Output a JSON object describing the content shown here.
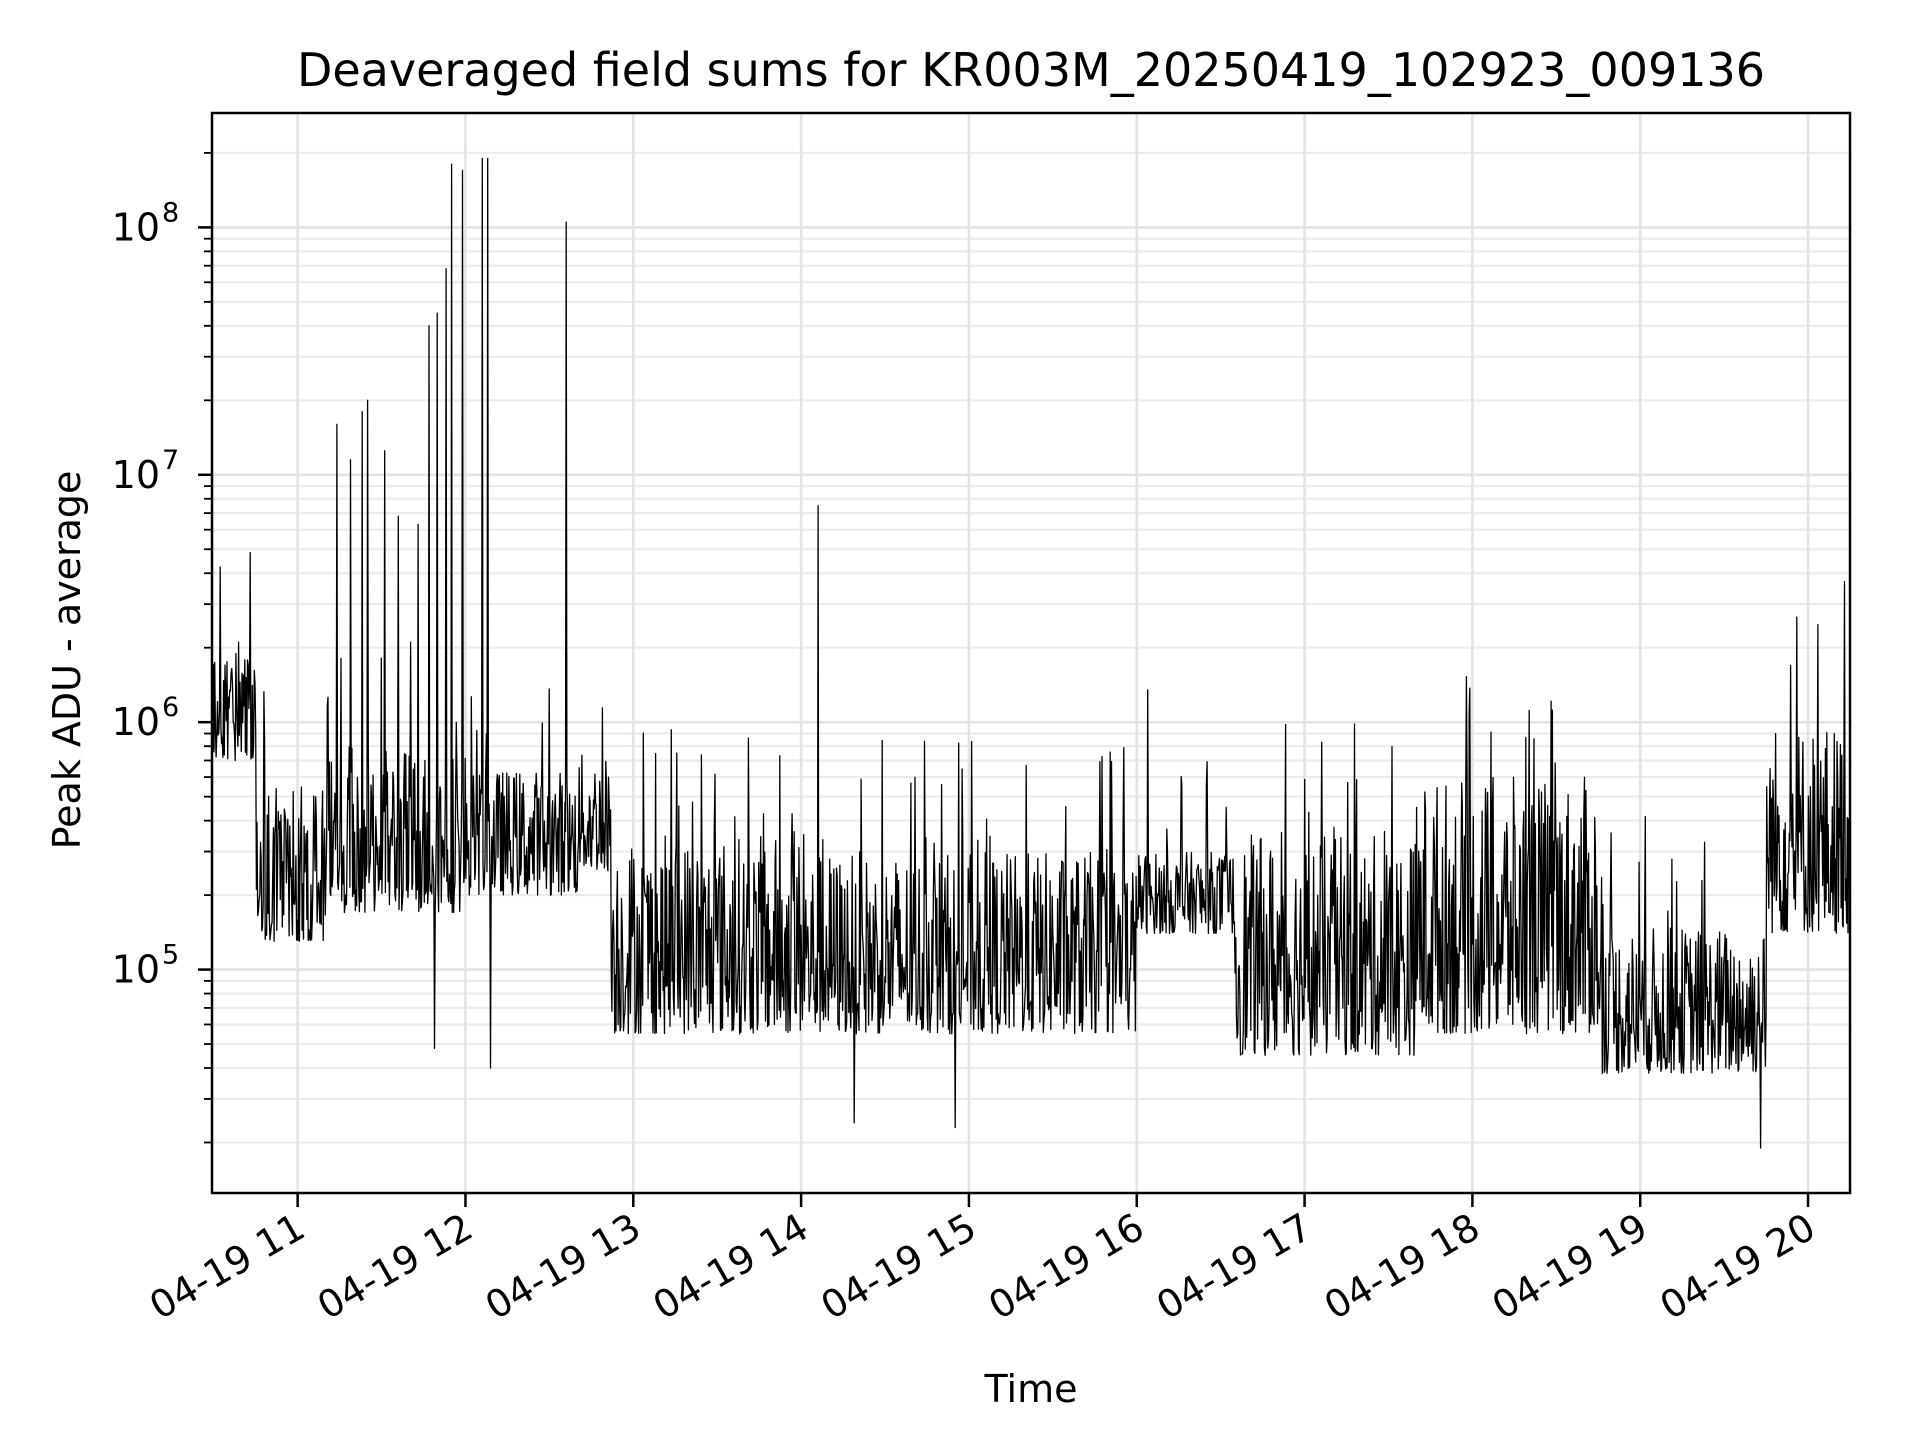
{
  "chart_data": {
    "type": "line",
    "title": "Deaveraged field sums for KR003M_20250419_102923_009136",
    "xlabel": "Time",
    "ylabel": "Peak ADU - average",
    "x_type": "datetime",
    "x_range": [
      "2025-04-19 10:29:23",
      "2025-04-19 20:15"
    ],
    "y_scale": "log",
    "ylim": [
      12500,
      290000000
    ],
    "x_ticks": [
      {
        "value": "2025-04-19 11:00",
        "label": "04-19 11"
      },
      {
        "value": "2025-04-19 12:00",
        "label": "04-19 12"
      },
      {
        "value": "2025-04-19 13:00",
        "label": "04-19 13"
      },
      {
        "value": "2025-04-19 14:00",
        "label": "04-19 14"
      },
      {
        "value": "2025-04-19 15:00",
        "label": "04-19 15"
      },
      {
        "value": "2025-04-19 16:00",
        "label": "04-19 16"
      },
      {
        "value": "2025-04-19 17:00",
        "label": "04-19 17"
      },
      {
        "value": "2025-04-19 18:00",
        "label": "04-19 18"
      },
      {
        "value": "2025-04-19 19:00",
        "label": "04-19 19"
      },
      {
        "value": "2025-04-19 20:00",
        "label": "04-19 20"
      }
    ],
    "y_ticks": [
      {
        "value": 100000,
        "base": "10",
        "exp": "5"
      },
      {
        "value": 1000000,
        "base": "10",
        "exp": "6"
      },
      {
        "value": 10000000,
        "base": "10",
        "exp": "7"
      },
      {
        "value": 100000000,
        "base": "10",
        "exp": "8"
      }
    ],
    "grid": true,
    "line_color": "#000000",
    "baseline_segments": [
      {
        "start": "2025-04-19 10:29:23",
        "end": "2025-04-19 10:45",
        "low": 700000,
        "high": 1900000
      },
      {
        "start": "2025-04-19 10:45",
        "end": "2025-04-19 11:10",
        "low": 130000,
        "high": 550000
      },
      {
        "start": "2025-04-19 11:10",
        "end": "2025-04-19 12:00",
        "low": 170000,
        "high": 800000
      },
      {
        "start": "2025-04-19 12:00",
        "end": "2025-04-19 12:40",
        "low": 200000,
        "high": 650000
      },
      {
        "start": "2025-04-19 12:40",
        "end": "2025-04-19 12:52",
        "low": 250000,
        "high": 750000
      },
      {
        "start": "2025-04-19 12:52",
        "end": "2025-04-19 14:00",
        "low": 55000,
        "high": 350000
      },
      {
        "start": "2025-04-19 14:00",
        "end": "2025-04-19 15:00",
        "low": 55000,
        "high": 300000
      },
      {
        "start": "2025-04-19 15:00",
        "end": "2025-04-19 16:00",
        "low": 55000,
        "high": 300000
      },
      {
        "start": "2025-04-19 16:00",
        "end": "2025-04-19 16:35",
        "low": 140000,
        "high": 300000
      },
      {
        "start": "2025-04-19 16:35",
        "end": "2025-04-19 17:40",
        "low": 45000,
        "high": 350000
      },
      {
        "start": "2025-04-19 17:40",
        "end": "2025-04-19 18:45",
        "low": 55000,
        "high": 600000
      },
      {
        "start": "2025-04-19 18:45",
        "end": "2025-04-19 19:45",
        "low": 38000,
        "high": 150000
      },
      {
        "start": "2025-04-19 19:45",
        "end": "2025-04-19 20:15",
        "low": 140000,
        "high": 1000000
      }
    ],
    "spikes": [
      {
        "x": "2025-04-19 11:14",
        "y": 16000000
      },
      {
        "x": "2025-04-19 11:19",
        "y": 11500000
      },
      {
        "x": "2025-04-19 11:23",
        "y": 18000000
      },
      {
        "x": "2025-04-19 11:25",
        "y": 20000000
      },
      {
        "x": "2025-04-19 11:31",
        "y": 12500000
      },
      {
        "x": "2025-04-19 11:36",
        "y": 6800000
      },
      {
        "x": "2025-04-19 11:43",
        "y": 6300000
      },
      {
        "x": "2025-04-19 11:47",
        "y": 40000000
      },
      {
        "x": "2025-04-19 11:50",
        "y": 45000000
      },
      {
        "x": "2025-04-19 11:53",
        "y": 68000000
      },
      {
        "x": "2025-04-19 11:55",
        "y": 180000000
      },
      {
        "x": "2025-04-19 11:59",
        "y": 170000000
      },
      {
        "x": "2025-04-19 12:06",
        "y": 190000000
      },
      {
        "x": "2025-04-19 12:08",
        "y": 190000000
      },
      {
        "x": "2025-04-19 12:36",
        "y": 105000000
      },
      {
        "x": "2025-04-19 14:06",
        "y": 7500000
      },
      {
        "x": "2025-04-19 16:04",
        "y": 1350000
      },
      {
        "x": "2025-04-19 20:13",
        "y": 3700000
      }
    ],
    "dips": [
      {
        "x": "2025-04-19 11:49",
        "y": 48000
      },
      {
        "x": "2025-04-19 12:09",
        "y": 40000
      },
      {
        "x": "2025-04-19 14:19",
        "y": 24000
      },
      {
        "x": "2025-04-19 14:55",
        "y": 23000
      },
      {
        "x": "2025-04-19 19:43",
        "y": 19000
      }
    ]
  }
}
